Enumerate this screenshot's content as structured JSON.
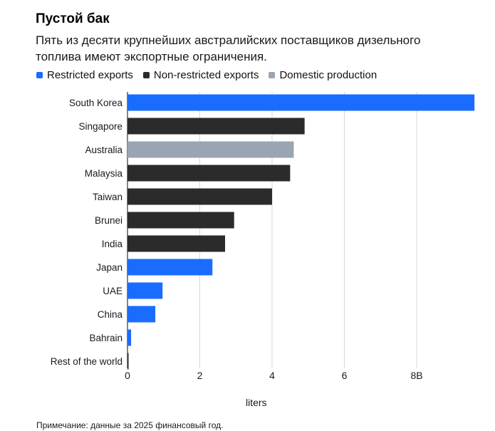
{
  "chart_data": {
    "type": "bar",
    "orientation": "horizontal",
    "title": "Пустой бак",
    "subtitle": "Пять из десяти крупнейших австралийских поставщиков дизельного топлива имеют экспортные ограничения.",
    "xlabel": "liters",
    "note": "Примечание: данные за 2025 финансовый год.",
    "xlim": [
      0,
      9.6
    ],
    "xticks": [
      "0",
      "2",
      "4",
      "6",
      "8B"
    ],
    "xtick_values": [
      0,
      2,
      4,
      6,
      8
    ],
    "grid": "vertical",
    "legend_placement": "top-left",
    "legend": [
      {
        "label": "Restricted exports",
        "color": "#1a6cff"
      },
      {
        "label": "Non-restricted exports",
        "color": "#2b2b2b"
      },
      {
        "label": "Domestic production",
        "color": "#9aa5b4"
      }
    ],
    "categories": [
      "South Korea",
      "Singapore",
      "Australia",
      "Malaysia",
      "Taiwan",
      "Brunei",
      "India",
      "Japan",
      "UAE",
      "China",
      "Bahrain",
      "Rest of the world"
    ],
    "values": [
      9.6,
      4.9,
      4.6,
      4.5,
      4.0,
      2.95,
      2.7,
      2.35,
      0.97,
      0.77,
      0.1,
      0.03
    ],
    "groups": [
      "Restricted exports",
      "Non-restricted exports",
      "Domestic production",
      "Non-restricted exports",
      "Non-restricted exports",
      "Non-restricted exports",
      "Non-restricted exports",
      "Restricted exports",
      "Restricted exports",
      "Restricted exports",
      "Restricted exports",
      "Non-restricted exports"
    ]
  }
}
